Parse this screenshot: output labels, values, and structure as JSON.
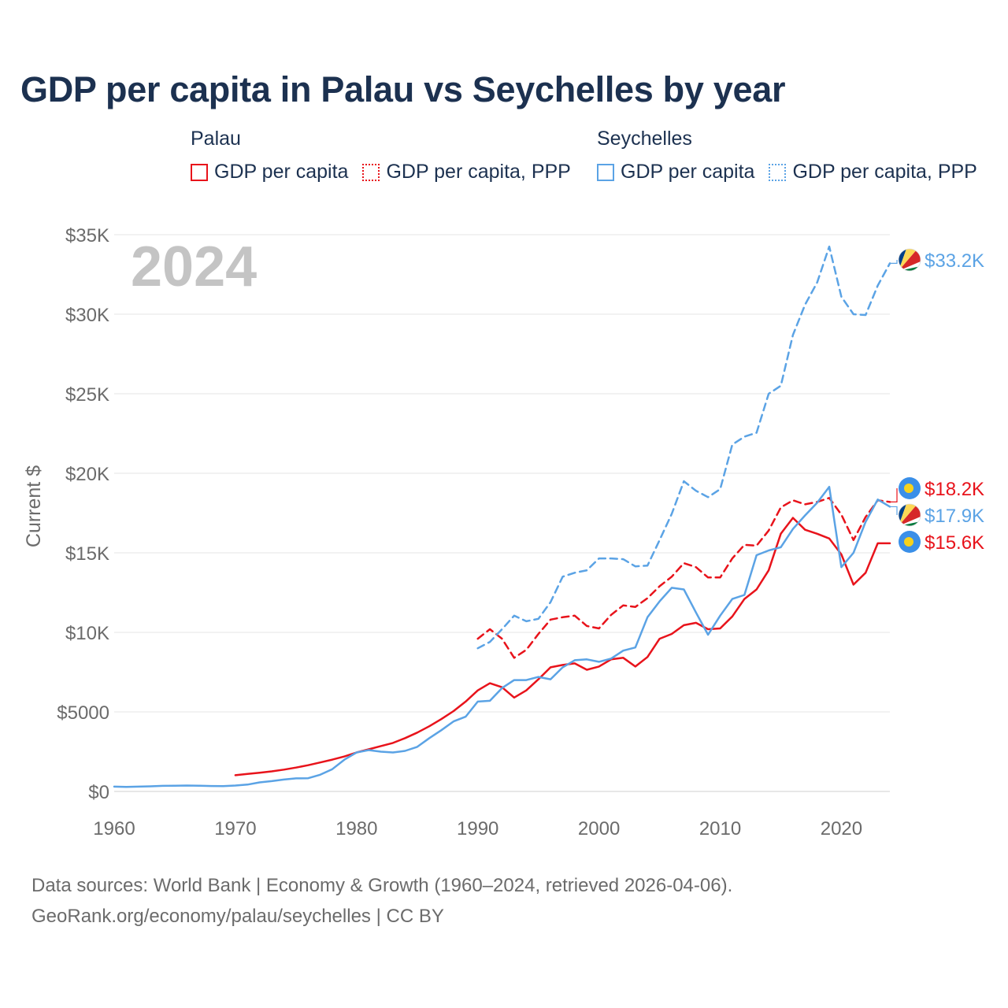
{
  "title": "GDP per capita in Palau vs Seychelles by year",
  "legend": {
    "groups": [
      {
        "heading": "Palau",
        "items": [
          {
            "label": "GDP per capita",
            "color": "#e8131b",
            "style": "solid"
          },
          {
            "label": "GDP per capita, PPP",
            "color": "#e8131b",
            "style": "dotted"
          }
        ]
      },
      {
        "heading": "Seychelles",
        "items": [
          {
            "label": "GDP per capita",
            "color": "#5ba3e5",
            "style": "solid"
          },
          {
            "label": "GDP per capita, PPP",
            "color": "#5ba3e5",
            "style": "dotted"
          }
        ]
      }
    ]
  },
  "footer": {
    "line1": "Data sources: World Bank | Economy & Growth (1960–2024, retrieved 2026-04-06).",
    "line2": "GeoRank.org/economy/palau/seychelles | CC BY"
  },
  "chart_data": {
    "type": "line",
    "title": "GDP per capita in Palau vs Seychelles by year",
    "year_label": "2024",
    "xlabel": "",
    "ylabel": "Current $",
    "xlim": [
      1960,
      2024
    ],
    "ylim": [
      0,
      35000
    ],
    "xticks": [
      1960,
      1970,
      1980,
      1990,
      2000,
      2010,
      2020
    ],
    "xtick_labels": [
      "1960",
      "1970",
      "1980",
      "1990",
      "2000",
      "2010",
      "2020"
    ],
    "yticks": [
      0,
      5000,
      10000,
      15000,
      20000,
      25000,
      30000,
      35000
    ],
    "ytick_labels": [
      "$0",
      "$5000",
      "$10K",
      "$15K",
      "$20K",
      "$25K",
      "$30K",
      "$35K"
    ],
    "grid": true,
    "series": [
      {
        "name": "Palau GDP per capita",
        "country": "Palau",
        "color": "#e8131b",
        "dash": "solid",
        "end_label": "$15.6K",
        "x": [
          1970,
          1971,
          1972,
          1973,
          1974,
          1975,
          1976,
          1977,
          1978,
          1979,
          1980,
          1981,
          1982,
          1983,
          1984,
          1985,
          1986,
          1987,
          1988,
          1989,
          1990,
          1991,
          1992,
          1993,
          1994,
          1995,
          1996,
          1997,
          1998,
          1999,
          2000,
          2001,
          2002,
          2003,
          2004,
          2005,
          2006,
          2007,
          2008,
          2009,
          2010,
          2011,
          2012,
          2013,
          2014,
          2015,
          2016,
          2017,
          2018,
          2019,
          2020,
          2021,
          2022,
          2023,
          2024
        ],
        "values": [
          1020,
          1100,
          1180,
          1260,
          1370,
          1500,
          1650,
          1820,
          2000,
          2200,
          2450,
          2650,
          2850,
          3050,
          3350,
          3700,
          4100,
          4550,
          5050,
          5650,
          6350,
          6800,
          6550,
          5900,
          6350,
          7050,
          7800,
          7950,
          8050,
          7650,
          7850,
          8300,
          8400,
          7850,
          8450,
          9600,
          9900,
          10450,
          10600,
          10200,
          10250,
          11000,
          12100,
          12700,
          13900,
          16200,
          17200,
          16450,
          16200,
          15900,
          14900,
          13000,
          13750,
          15600,
          15600
        ]
      },
      {
        "name": "Palau GDP per capita, PPP",
        "country": "Palau",
        "color": "#e8131b",
        "dash": "dashed",
        "end_label": "$18.2K",
        "x": [
          1990,
          1991,
          1992,
          1993,
          1994,
          1995,
          1996,
          1997,
          1998,
          1999,
          2000,
          2001,
          2002,
          2003,
          2004,
          2005,
          2006,
          2007,
          2008,
          2009,
          2010,
          2011,
          2012,
          2013,
          2014,
          2015,
          2016,
          2017,
          2018,
          2019,
          2020,
          2021,
          2022,
          2023,
          2024
        ],
        "values": [
          9600,
          10200,
          9600,
          8400,
          8900,
          9900,
          10800,
          10950,
          11050,
          10400,
          10250,
          11100,
          11700,
          11600,
          12150,
          12900,
          13500,
          14350,
          14100,
          13450,
          13450,
          14650,
          15500,
          15450,
          16400,
          17850,
          18300,
          18050,
          18200,
          18450,
          17400,
          15800,
          17250,
          18300,
          18200
        ]
      },
      {
        "name": "Seychelles GDP per capita",
        "country": "Seychelles",
        "color": "#5ba3e5",
        "dash": "solid",
        "end_label": "$17.9K",
        "x": [
          1960,
          1961,
          1962,
          1963,
          1964,
          1965,
          1966,
          1967,
          1968,
          1969,
          1970,
          1971,
          1972,
          1973,
          1974,
          1975,
          1976,
          1977,
          1978,
          1979,
          1980,
          1981,
          1982,
          1983,
          1984,
          1985,
          1986,
          1987,
          1988,
          1989,
          1990,
          1991,
          1992,
          1993,
          1994,
          1995,
          1996,
          1997,
          1998,
          1999,
          2000,
          2001,
          2002,
          2003,
          2004,
          2005,
          2006,
          2007,
          2008,
          2009,
          2010,
          2011,
          2012,
          2013,
          2014,
          2015,
          2016,
          2017,
          2018,
          2019,
          2020,
          2021,
          2022,
          2023,
          2024
        ],
        "values": [
          300,
          280,
          300,
          320,
          350,
          360,
          370,
          360,
          340,
          330,
          370,
          430,
          570,
          650,
          750,
          820,
          830,
          1050,
          1400,
          2000,
          2450,
          2600,
          2500,
          2450,
          2550,
          2800,
          3350,
          3850,
          4400,
          4700,
          5650,
          5700,
          6500,
          7000,
          7000,
          7200,
          7050,
          7800,
          8250,
          8300,
          8150,
          8350,
          8850,
          9050,
          10950,
          11950,
          12800,
          12700,
          11250,
          9850,
          11050,
          12100,
          12350,
          14850,
          15150,
          15350,
          16500,
          17350,
          18150,
          19150,
          14100,
          15000,
          16950,
          18350,
          17900
        ]
      },
      {
        "name": "Seychelles GDP per capita, PPP",
        "country": "Seychelles",
        "color": "#5ba3e5",
        "dash": "dashed",
        "end_label": "$33.2K",
        "x": [
          1990,
          1991,
          1992,
          1993,
          1994,
          1995,
          1996,
          1997,
          1998,
          1999,
          2000,
          2001,
          2002,
          2003,
          2004,
          2005,
          2006,
          2007,
          2008,
          2009,
          2010,
          2011,
          2012,
          2013,
          2014,
          2015,
          2016,
          2017,
          2018,
          2019,
          2020,
          2021,
          2022,
          2023,
          2024
        ],
        "values": [
          9000,
          9400,
          10200,
          11050,
          10700,
          10850,
          11900,
          13500,
          13750,
          13900,
          14650,
          14650,
          14600,
          14150,
          14200,
          15800,
          17450,
          19500,
          18900,
          18500,
          19000,
          21800,
          22300,
          22550,
          25000,
          25500,
          28700,
          30600,
          32000,
          34250,
          31100,
          30000,
          29950,
          31800,
          33200
        ]
      }
    ]
  }
}
